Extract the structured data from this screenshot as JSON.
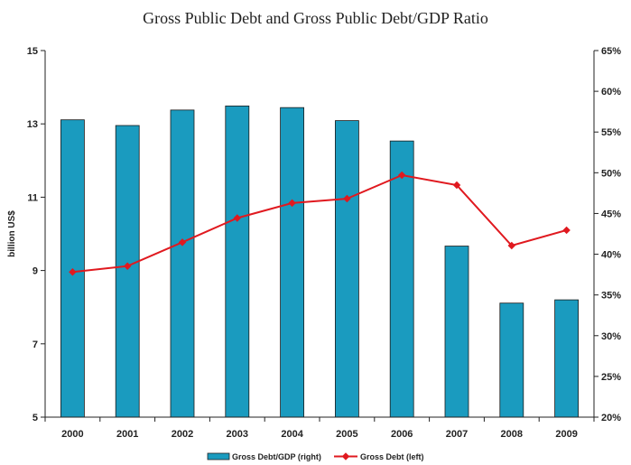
{
  "chart_data": {
    "type": "bar+line",
    "title": "Gross Public Debt and Gross Public Debt/GDP Ratio",
    "categories": [
      "2000",
      "2001",
      "2002",
      "2003",
      "2004",
      "2005",
      "2006",
      "2007",
      "2008",
      "2009"
    ],
    "ylabel_left": "billion US$",
    "ylim_left": [
      5,
      15
    ],
    "yticks_left": [
      "5",
      "7",
      "9",
      "11",
      "13",
      "15"
    ],
    "ylim_right": [
      20,
      65
    ],
    "yticks_right": [
      "20%",
      "25%",
      "30%",
      "35%",
      "40%",
      "45%",
      "50%",
      "55%",
      "60%",
      "65%"
    ],
    "series": [
      {
        "name": "Gross Debt/GDP (right)",
        "type": "bar",
        "axis": "right",
        "color": "#1a9bbf",
        "values": [
          56.5,
          55.8,
          57.7,
          58.2,
          58.0,
          56.4,
          53.9,
          41.0,
          34.0,
          34.4
        ]
      },
      {
        "name": "Gross Debt (left)",
        "type": "line",
        "axis": "left",
        "color": "#e0191f",
        "values": [
          8.96,
          9.12,
          9.77,
          10.43,
          10.84,
          10.96,
          11.6,
          11.33,
          9.68,
          10.1
        ]
      }
    ],
    "legend": "bottom-center",
    "grid": false
  }
}
